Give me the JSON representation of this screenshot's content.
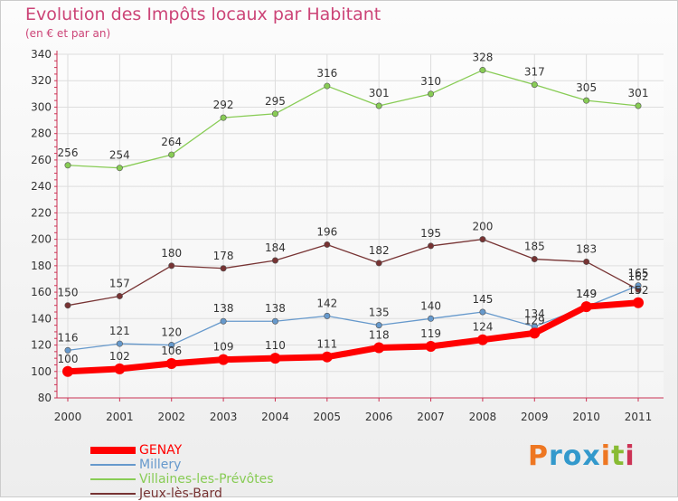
{
  "title": "Evolution des Impôts locaux par Habitant",
  "subtitle": "(en € et par an)",
  "logo_text": "Proxiti",
  "chart_data": {
    "type": "line",
    "title": "Evolution des Impôts locaux par Habitant",
    "subtitle": "(en € et par an)",
    "xlabel": "",
    "ylabel": "",
    "x": [
      "2000",
      "2001",
      "2002",
      "2003",
      "2004",
      "2005",
      "2006",
      "2007",
      "2008",
      "2009",
      "2010",
      "2011"
    ],
    "ylim": [
      80,
      340
    ],
    "yticks": [
      80,
      100,
      120,
      140,
      160,
      180,
      200,
      220,
      240,
      260,
      280,
      300,
      320,
      340
    ],
    "grid": true,
    "legend_position": "bottom-left",
    "series": [
      {
        "name": "GENAY",
        "color": "#ff0000",
        "values": [
          100,
          102,
          106,
          109,
          110,
          111,
          118,
          119,
          124,
          129,
          149,
          152
        ],
        "labels": [
          "100",
          "102",
          "106",
          "109",
          "110",
          "111",
          "118",
          "119",
          "124",
          "129",
          "149",
          "152"
        ]
      },
      {
        "name": "Millery",
        "color": "#6699cc",
        "values": [
          116,
          121,
          120,
          138,
          138,
          142,
          135,
          140,
          145,
          134,
          149,
          165
        ],
        "labels": [
          "116",
          "121",
          "120",
          "138",
          "138",
          "142",
          "135",
          "140",
          "145",
          "134",
          "149",
          "165"
        ]
      },
      {
        "name": "Villaines-les-Prévôtes",
        "color": "#88cc55",
        "values": [
          256,
          254,
          264,
          292,
          295,
          316,
          301,
          310,
          328,
          317,
          305,
          301
        ],
        "labels": [
          "256",
          "254",
          "264",
          "292",
          "295",
          "316",
          "301",
          "310",
          "328",
          "317",
          "305",
          "301"
        ]
      },
      {
        "name": "Jeux-lès-Bard",
        "color": "#773333",
        "values": [
          150,
          157,
          180,
          178,
          184,
          196,
          182,
          195,
          200,
          185,
          183,
          162
        ],
        "labels": [
          "150",
          "157",
          "180",
          "178",
          "184",
          "196",
          "182",
          "195",
          "200",
          "185",
          "183",
          "162"
        ]
      }
    ]
  }
}
